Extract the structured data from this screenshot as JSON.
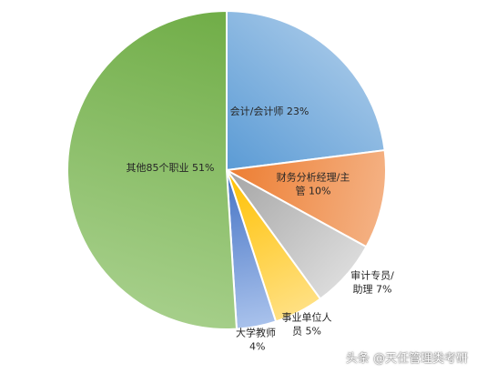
{
  "chart_data": {
    "type": "pie",
    "slices": [
      {
        "label": "会计/会计师",
        "value": 23,
        "pct_text": "23%",
        "color_light": "#9dc3e6",
        "color_dark": "#5b9bd5"
      },
      {
        "label": "财务分析经理/主管",
        "value": 10,
        "pct_text": "10%",
        "color_light": "#f4b183",
        "color_dark": "#ed7d31"
      },
      {
        "label": "审计专员/助理",
        "value": 7,
        "pct_text": "7%",
        "color_light": "#dbdbdb",
        "color_dark": "#a5a5a5"
      },
      {
        "label": "事业单位人员",
        "value": 5,
        "pct_text": "5%",
        "color_light": "#ffe082",
        "color_dark": "#ffc000"
      },
      {
        "label": "大学教师",
        "value": 4,
        "pct_text": "4%",
        "color_light": "#a9c2ec",
        "color_dark": "#4472c4"
      },
      {
        "label": "其他85个职业",
        "value": 51,
        "pct_text": "51%",
        "color_light": "#a9d18e",
        "color_dark": "#70ad47"
      }
    ]
  },
  "watermark": "头条 @天任管理类考研"
}
